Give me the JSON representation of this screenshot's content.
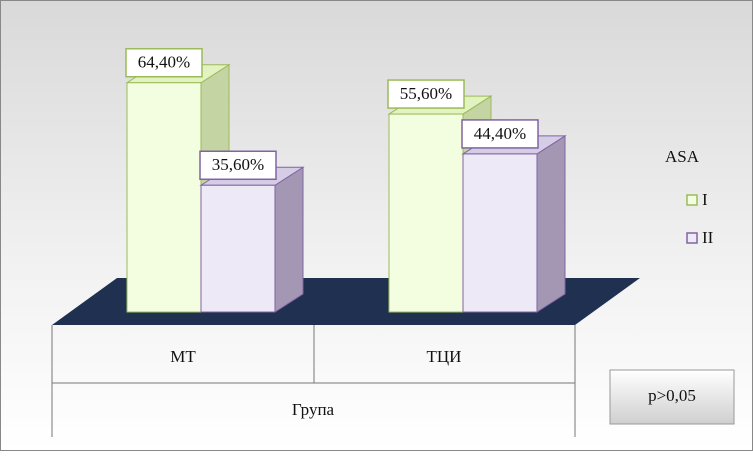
{
  "chart_data": {
    "type": "bar3d",
    "categories": [
      "МТ",
      "ТЦИ"
    ],
    "x_label": "Група",
    "legend_title": "ASA",
    "annotation": "p>0,05",
    "series": [
      {
        "name": "I",
        "color": "#9bbb59",
        "values": [
          64.4,
          55.6
        ],
        "value_labels": [
          "64,40%",
          "55,60%"
        ]
      },
      {
        "name": "II",
        "color": "#8064a2",
        "values": [
          35.6,
          44.4
        ],
        "value_labels": [
          "35,60%",
          "44,40%"
        ]
      }
    ]
  }
}
